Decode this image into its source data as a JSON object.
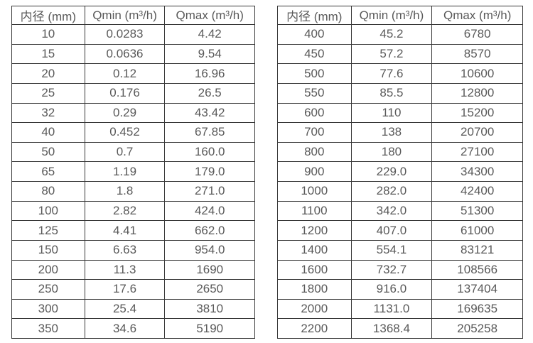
{
  "page": {
    "background_color": "#ffffff",
    "border_color": "#383838",
    "text_color": "#595959"
  },
  "tables": [
    {
      "name": "small-diameters",
      "headers": [
        "内径 (mm)",
        "Qmin (m³/h)",
        "Qmax (m³/h)"
      ],
      "rows": [
        [
          "10",
          "0.0283",
          "4.42"
        ],
        [
          "15",
          "0.0636",
          "9.54"
        ],
        [
          "20",
          "0.12",
          "16.96"
        ],
        [
          "25",
          "0.176",
          "26.5"
        ],
        [
          "32",
          "0.29",
          "43.42"
        ],
        [
          "40",
          "0.452",
          "67.85"
        ],
        [
          "50",
          "0.7",
          "160.0"
        ],
        [
          "65",
          "1.19",
          "179.0"
        ],
        [
          "80",
          "1.8",
          "271.0"
        ],
        [
          "100",
          "2.82",
          "424.0"
        ],
        [
          "125",
          "4.41",
          "662.0"
        ],
        [
          "150",
          "6.63",
          "954.0"
        ],
        [
          "200",
          "11.3",
          "1690"
        ],
        [
          "250",
          "17.6",
          "2650"
        ],
        [
          "300",
          "25.4",
          "3810"
        ],
        [
          "350",
          "34.6",
          "5190"
        ]
      ]
    },
    {
      "name": "large-diameters",
      "headers": [
        "内径 (mm)",
        "Qmin (m³/h)",
        "Qmax (m³/h)"
      ],
      "rows": [
        [
          "400",
          "45.2",
          "6780"
        ],
        [
          "450",
          "57.2",
          "8570"
        ],
        [
          "500",
          "77.6",
          "10600"
        ],
        [
          "550",
          "85.5",
          "12800"
        ],
        [
          "600",
          "110",
          "15200"
        ],
        [
          "700",
          "138",
          "20700"
        ],
        [
          "800",
          "180",
          "27100"
        ],
        [
          "900",
          "229.0",
          "34300"
        ],
        [
          "1000",
          "282.0",
          "42400"
        ],
        [
          "1100",
          "342.0",
          "51300"
        ],
        [
          "1200",
          "407.0",
          "61000"
        ],
        [
          "1400",
          "554.1",
          "83121"
        ],
        [
          "1600",
          "732.7",
          "108566"
        ],
        [
          "1800",
          "916.0",
          "137404"
        ],
        [
          "2000",
          "1131.0",
          "169635"
        ],
        [
          "2200",
          "1368.4",
          "205258"
        ]
      ]
    }
  ],
  "chart_data": [
    {
      "type": "table",
      "title": "",
      "columns": [
        "内径 (mm)",
        "Qmin (m³/h)",
        "Qmax (m³/h)"
      ],
      "rows": [
        [
          "10",
          "0.0283",
          "4.42"
        ],
        [
          "15",
          "0.0636",
          "9.54"
        ],
        [
          "20",
          "0.12",
          "16.96"
        ],
        [
          "25",
          "0.176",
          "26.5"
        ],
        [
          "32",
          "0.29",
          "43.42"
        ],
        [
          "40",
          "0.452",
          "67.85"
        ],
        [
          "50",
          "0.7",
          "160.0"
        ],
        [
          "65",
          "1.19",
          "179.0"
        ],
        [
          "80",
          "1.8",
          "271.0"
        ],
        [
          "100",
          "2.82",
          "424.0"
        ],
        [
          "125",
          "4.41",
          "662.0"
        ],
        [
          "150",
          "6.63",
          "954.0"
        ],
        [
          "200",
          "11.3",
          "1690"
        ],
        [
          "250",
          "17.6",
          "2650"
        ],
        [
          "300",
          "25.4",
          "3810"
        ],
        [
          "350",
          "34.6",
          "5190"
        ]
      ]
    },
    {
      "type": "table",
      "title": "",
      "columns": [
        "内径 (mm)",
        "Qmin (m³/h)",
        "Qmax (m³/h)"
      ],
      "rows": [
        [
          "400",
          "45.2",
          "6780"
        ],
        [
          "450",
          "57.2",
          "8570"
        ],
        [
          "500",
          "77.6",
          "10600"
        ],
        [
          "550",
          "85.5",
          "12800"
        ],
        [
          "600",
          "110",
          "15200"
        ],
        [
          "700",
          "138",
          "20700"
        ],
        [
          "800",
          "180",
          "27100"
        ],
        [
          "900",
          "229.0",
          "34300"
        ],
        [
          "1000",
          "282.0",
          "42400"
        ],
        [
          "1100",
          "342.0",
          "51300"
        ],
        [
          "1200",
          "407.0",
          "61000"
        ],
        [
          "1400",
          "554.1",
          "83121"
        ],
        [
          "1600",
          "732.7",
          "108566"
        ],
        [
          "1800",
          "916.0",
          "137404"
        ],
        [
          "2000",
          "1131.0",
          "169635"
        ],
        [
          "2200",
          "1368.4",
          "205258"
        ]
      ]
    }
  ]
}
